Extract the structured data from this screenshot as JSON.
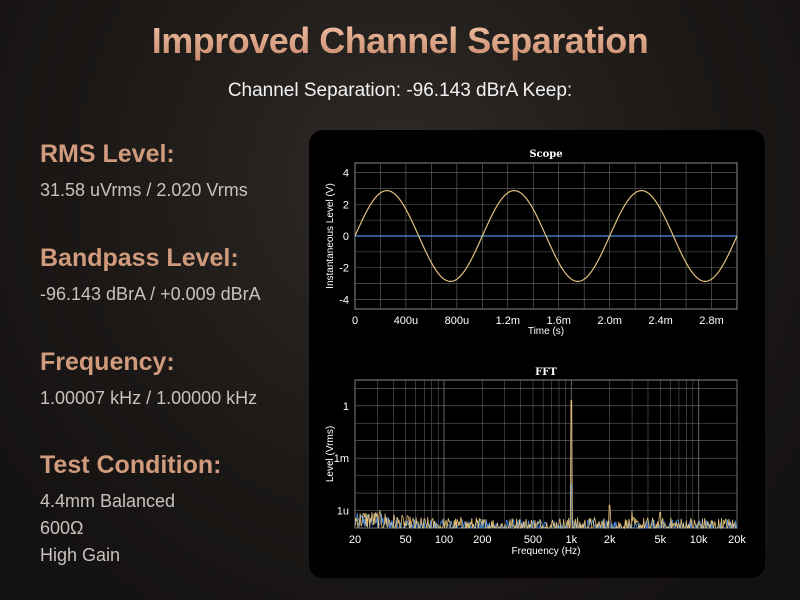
{
  "header": {
    "title": "Improved Channel Separation",
    "subtitle": "Channel Separation: -96.143 dBrA Keep:"
  },
  "specs": [
    {
      "label": "RMS Level:",
      "value": "31.58 uVrms / 2.020 Vrms"
    },
    {
      "label": "Bandpass Level:",
      "value": "-96.143 dBrA / +0.009 dBrA"
    },
    {
      "label": "Frequency:",
      "value": "1.00007 kHz / 1.00000 kHz"
    },
    {
      "label": "Test Condition:",
      "lines": [
        "4.4mm Balanced",
        "600Ω",
        "High Gain"
      ]
    }
  ],
  "colors": {
    "signal": "#e3c07c",
    "reference": "#4a90e2",
    "grid": "#6b6b6b",
    "background": "#000000"
  },
  "chart_data": [
    {
      "type": "line",
      "title": "Scope",
      "xlabel": "Time (s)",
      "ylabel": "Instantaneous Level (V)",
      "xlim": [
        0,
        0.003
      ],
      "ylim": [
        -4.6,
        4.6
      ],
      "x_ticks": [
        0,
        0.0004,
        0.0008,
        0.0012,
        0.0016,
        0.002,
        0.0024,
        0.0028
      ],
      "x_tick_labels": [
        "0",
        "400u",
        "800u",
        "1.2m",
        "1.6m",
        "2.0m",
        "2.4m",
        "2.8m"
      ],
      "y_ticks": [
        4,
        2,
        0,
        -2,
        -4
      ],
      "y_tick_labels": [
        "4",
        "2",
        "0",
        "-2",
        "-4"
      ],
      "grid": true,
      "series": [
        {
          "color": "#e3c07c",
          "waveform": "sine",
          "amplitude_v": 2.86,
          "frequency_hz": 1000
        },
        {
          "color": "#4a90e2",
          "waveform": "flat",
          "level_v": 0
        }
      ]
    },
    {
      "type": "line",
      "title": "FFT",
      "xlabel": "Frequency (Hz)",
      "ylabel": "Level (Vrms)",
      "x_scale": "log",
      "y_scale": "log",
      "xlim": [
        20,
        20000
      ],
      "ylim": [
        1e-07,
        30
      ],
      "x_ticks": [
        20,
        50,
        100,
        200,
        500,
        1000,
        2000,
        5000,
        10000,
        20000
      ],
      "x_tick_labels": [
        "20",
        "50",
        "100",
        "200",
        "500",
        "1k",
        "2k",
        "5k",
        "10k",
        "20k"
      ],
      "y_ticks": [
        1,
        0.001,
        1e-06
      ],
      "y_tick_labels": [
        "1",
        "1m",
        "1u"
      ],
      "grid": true,
      "series": [
        {
          "color": "#e3c07c",
          "peaks_hz": [
            1000,
            2000,
            3000,
            5000
          ],
          "peaks_vrms": [
            2.02,
            2e-06,
            1e-06,
            8e-07
          ]
        },
        {
          "color": "#4a90e2",
          "peaks_hz": [
            1000
          ],
          "peaks_vrms": [
            3.16e-05
          ]
        }
      ]
    }
  ]
}
